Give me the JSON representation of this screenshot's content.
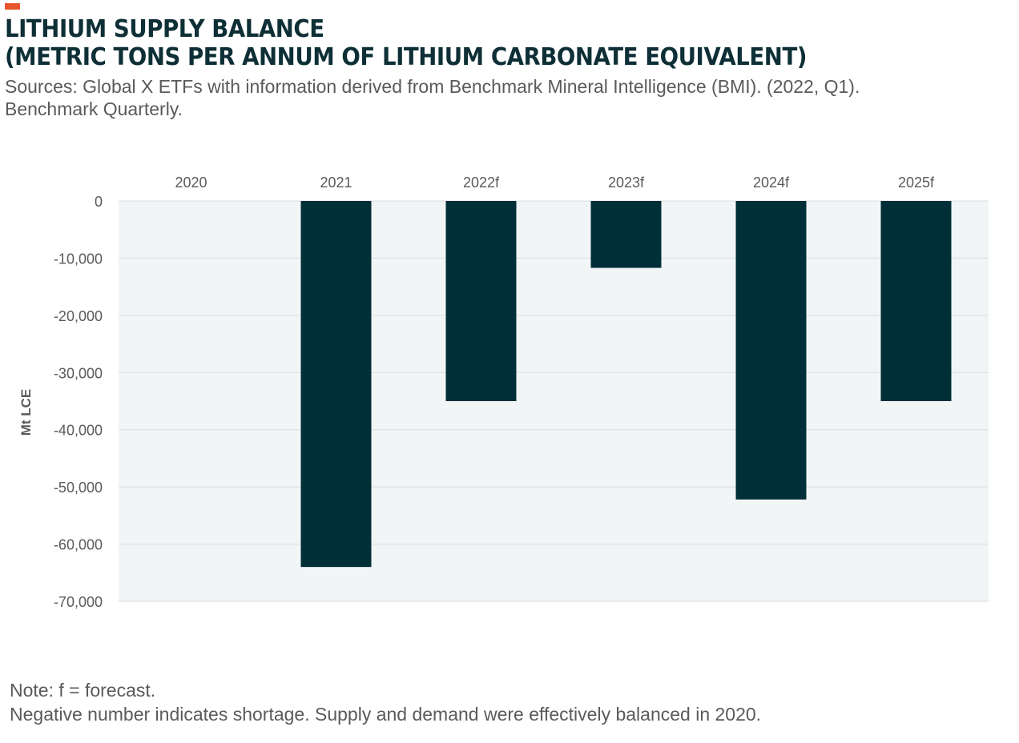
{
  "header": {
    "title_line1": "LITHIUM SUPPLY BALANCE",
    "title_line2": "(METRIC TONS PER ANNUM OF LITHIUM CARBONATE EQUIVALENT)",
    "source_line1": "Sources: Global X ETFs with information derived from Benchmark Mineral Intelligence (BMI). (2022, Q1).",
    "source_line2": "Benchmark Quarterly."
  },
  "footer": {
    "note_line1": "Note: f = forecast.",
    "note_line2": "Negative number indicates shortage. Supply and demand were effectively balanced in 2020."
  },
  "colors": {
    "accent": "#e8552b",
    "bar": "#002f38",
    "plot_background": "#f2f5f6",
    "gridline": "#d8dde0",
    "text": "#5a5a5a"
  },
  "chart_data": {
    "type": "bar",
    "title": "LITHIUM SUPPLY BALANCE (METRIC TONS PER ANNUM OF LITHIUM CARBONATE EQUIVALENT)",
    "categories": [
      "2020",
      "2021",
      "2022f",
      "2023f",
      "2024f",
      "2025f"
    ],
    "values": [
      0,
      -64000,
      -35000,
      -11700,
      -52200,
      -35000
    ],
    "xlabel": "",
    "ylabel": "Mt LCE",
    "ylim": [
      -70000,
      0
    ],
    "yticks": [
      0,
      -10000,
      -20000,
      -30000,
      -40000,
      -50000,
      -60000,
      -70000
    ],
    "ytick_labels": [
      "0",
      "-10,000",
      "-20,000",
      "-30,000",
      "-40,000",
      "-50,000",
      "-60,000",
      "-70,000"
    ],
    "category_axis_position": "top",
    "grid": true,
    "legend": "none"
  }
}
